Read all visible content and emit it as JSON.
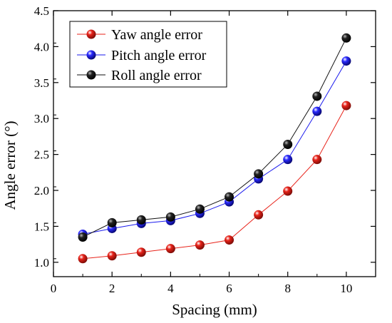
{
  "chart_data": {
    "type": "line",
    "title": "",
    "xlabel": "Spacing (mm)",
    "ylabel": "Angle error (°)",
    "xlim": [
      0,
      11
    ],
    "ylim": [
      0.8,
      4.5
    ],
    "xticks": [
      0,
      2,
      4,
      6,
      8,
      10
    ],
    "yticks": [
      1.0,
      1.5,
      2.0,
      2.5,
      3.0,
      3.5,
      4.0,
      4.5
    ],
    "x": [
      1,
      2,
      3,
      4,
      5,
      6,
      7,
      8,
      9,
      10
    ],
    "grid": false,
    "legend_position": "top-left",
    "series": [
      {
        "name": "Yaw angle error",
        "color": "#e8231a",
        "values": [
          1.05,
          1.09,
          1.14,
          1.19,
          1.24,
          1.31,
          1.66,
          1.99,
          2.43,
          3.18
        ]
      },
      {
        "name": "Pitch angle error",
        "color": "#1a1aee",
        "values": [
          1.39,
          1.47,
          1.54,
          1.58,
          1.68,
          1.84,
          2.16,
          2.43,
          3.1,
          3.8
        ]
      },
      {
        "name": "Roll angle error",
        "color": "#111111",
        "values": [
          1.35,
          1.55,
          1.59,
          1.63,
          1.74,
          1.91,
          2.23,
          2.64,
          3.31,
          4.12
        ]
      }
    ]
  }
}
